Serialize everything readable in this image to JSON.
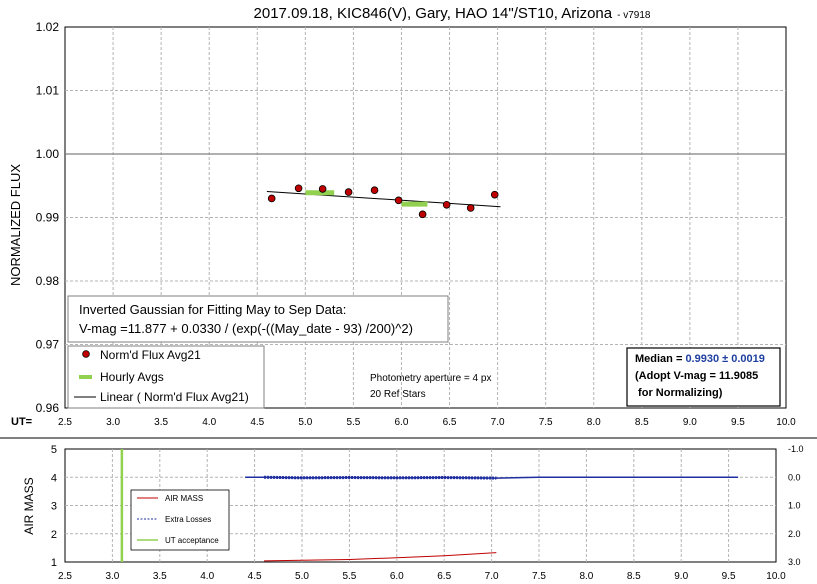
{
  "chart_data": [
    {
      "type": "scatter",
      "title": "2017.09.18, KIC846(V), Gary, HAO 14\"/ST10, Arizona",
      "title_version": "- v7918",
      "ylabel": "NORMALIZED FLUX",
      "ut_label": "UT=",
      "xlim": [
        2.5,
        10.0
      ],
      "ylim": [
        0.96,
        1.02
      ],
      "xticks": [
        "2.5",
        "3.0",
        "3.5",
        "4.0",
        "4.5",
        "5.0",
        "5.5",
        "6.0",
        "6.5",
        "7.0",
        "7.5",
        "8.0",
        "8.5",
        "9.0",
        "9.5",
        "10.0"
      ],
      "yticks": [
        "0.96",
        "0.97",
        "0.98",
        "0.99",
        "1.00",
        "1.01",
        "1.02"
      ],
      "grid": true,
      "reference_line_y": 1.0,
      "series": [
        {
          "name": "Norm'd Flux Avg21",
          "style": "point",
          "color": "#c00000",
          "x": [
            4.65,
            4.93,
            5.18,
            5.45,
            5.72,
            5.97,
            6.22,
            6.47,
            6.72,
            6.97
          ],
          "y": [
            0.993,
            0.9946,
            0.9945,
            0.994,
            0.9943,
            0.9927,
            0.9905,
            0.992,
            0.9915,
            0.9936
          ]
        },
        {
          "name": "Hourly Avgs",
          "style": "dash",
          "color": "#92d050",
          "segments": [
            [
              5.0,
              5.3,
              0.9939
            ],
            [
              6.0,
              6.27,
              0.9921
            ]
          ]
        },
        {
          "name": "Linear ( Norm'd Flux Avg21)",
          "style": "line",
          "color": "#000000",
          "x": [
            4.6,
            7.03
          ],
          "y": [
            0.9941,
            0.9917
          ]
        }
      ],
      "fit_box": {
        "line1": "Inverted Gaussian for Fitting May to Sep Data:",
        "line2": "V-mag =11.877 + 0.0330 / (exp(-((May_date - 93) /200)^2)"
      },
      "annotations": [
        "Photometry aperture = 4 px",
        "20 Ref Stars"
      ],
      "median_box": {
        "label": "Median = ",
        "value": "0.9930 ± 0.0019",
        "value_color": "#1f3fa0",
        "line2": "(Adopt V-mag = 11.9085",
        "line3": " for Normalizing)"
      }
    },
    {
      "type": "line",
      "ylabel": "AIR MASS",
      "xlim": [
        2.5,
        10.0
      ],
      "ylim": [
        1,
        5
      ],
      "xticks": [
        "2.5",
        "3.0",
        "3.5",
        "4.0",
        "4.5",
        "5.0",
        "5.5",
        "6.0",
        "6.5",
        "7.0",
        "7.5",
        "8.0",
        "8.5",
        "9.0",
        "9.5",
        "10.0"
      ],
      "yticks": [
        "1",
        "2",
        "3",
        "4",
        "5"
      ],
      "y2ticks": [
        "-1.0",
        "0.0",
        "1.0",
        "2.0",
        "3.0"
      ],
      "y2lim": [
        -1.0,
        3.0
      ],
      "grid": true,
      "series": [
        {
          "name": "AIR MASS",
          "axis": "left",
          "color": "#c00000",
          "x": [
            4.6,
            5.0,
            5.5,
            6.0,
            6.5,
            7.05
          ],
          "y": [
            1.04,
            1.06,
            1.09,
            1.15,
            1.22,
            1.33
          ]
        },
        {
          "name": "Extra Losses",
          "axis": "right",
          "color": "#1f2f9f",
          "x": [
            4.4,
            4.6,
            5.0,
            5.5,
            6.0,
            6.5,
            7.05,
            7.5,
            8.5,
            9.6
          ],
          "y": [
            0.0,
            0.0,
            0.02,
            0.01,
            0.02,
            0.01,
            0.03,
            0.0,
            0.0,
            0.0
          ]
        },
        {
          "name": "UT acceptance",
          "axis": "left",
          "color": "#92d050",
          "x": [
            3.1,
            3.1
          ],
          "y": [
            1,
            5
          ]
        }
      ]
    }
  ]
}
